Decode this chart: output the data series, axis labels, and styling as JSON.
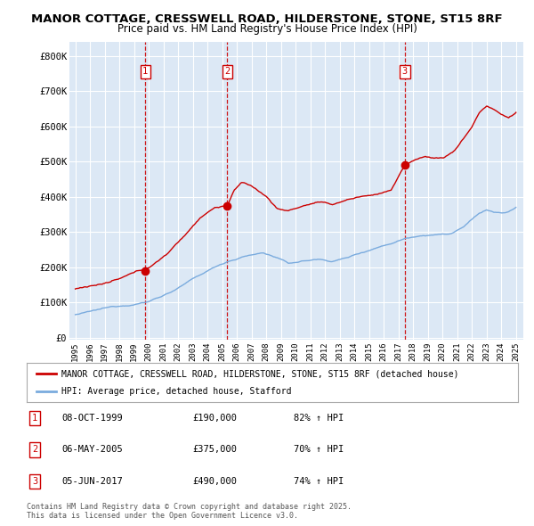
{
  "title1": "MANOR COTTAGE, CRESSWELL ROAD, HILDERSTONE, STONE, ST15 8RF",
  "title2": "Price paid vs. HM Land Registry's House Price Index (HPI)",
  "legend_label1": "MANOR COTTAGE, CRESSWELL ROAD, HILDERSTONE, STONE, ST15 8RF (detached house)",
  "legend_label2": "HPI: Average price, detached house, Stafford",
  "yticks": [
    0,
    100000,
    200000,
    300000,
    400000,
    500000,
    600000,
    700000,
    800000
  ],
  "ytick_labels": [
    "£0",
    "£100K",
    "£200K",
    "£300K",
    "£400K",
    "£500K",
    "£600K",
    "£700K",
    "£800K"
  ],
  "ylim": [
    -5000,
    840000
  ],
  "sale_prices": [
    190000,
    375000,
    490000
  ],
  "sale_labels": [
    "1",
    "2",
    "3"
  ],
  "sale_info": [
    {
      "label": "1",
      "date": "08-OCT-1999",
      "price": "£190,000",
      "pct": "82% ↑ HPI"
    },
    {
      "label": "2",
      "date": "06-MAY-2005",
      "price": "£375,000",
      "pct": "70% ↑ HPI"
    },
    {
      "label": "3",
      "date": "05-JUN-2017",
      "price": "£490,000",
      "pct": "74% ↑ HPI"
    }
  ],
  "footnote": "Contains HM Land Registry data © Crown copyright and database right 2025.\nThis data is licensed under the Open Government Licence v3.0.",
  "plot_bg_color": "#dce8f5",
  "red_color": "#cc0000",
  "blue_color": "#7aabde",
  "vline_color": "#cc0000",
  "grid_color": "#ffffff",
  "title_fontsize": 9.5,
  "subtitle_fontsize": 8.5,
  "sale_year_floats": [
    1999.77,
    2005.35,
    2017.43
  ]
}
